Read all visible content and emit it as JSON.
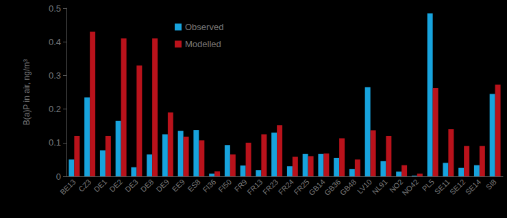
{
  "chart_data": {
    "type": "bar",
    "y_label": "B(a)P in air, ng/m³",
    "categories": [
      "BE13",
      "CZ3",
      "DE1",
      "DE2",
      "DE3",
      "DE8",
      "DE9",
      "EE9",
      "ES8",
      "FI36",
      "FI50",
      "FR9",
      "FR13",
      "FR23",
      "FR24",
      "FR25",
      "GB14",
      "GB36",
      "GB48",
      "LV10",
      "NL91",
      "NO2",
      "NO42",
      "PL5",
      "SE11",
      "SE12",
      "SE14",
      "SI8"
    ],
    "series": [
      {
        "name": "Observed",
        "color": "#17a3dd",
        "values": [
          0.05,
          0.235,
          0.077,
          0.165,
          0.027,
          0.065,
          0.125,
          0.135,
          0.138,
          0.008,
          0.093,
          0.032,
          0.018,
          0.13,
          0.03,
          0.067,
          0.067,
          0.055,
          0.022,
          0.265,
          0.045,
          0.014,
          0.002,
          0.485,
          0.04,
          0.025,
          0.033,
          0.245
        ]
      },
      {
        "name": "Modelled",
        "color": "#b9121b",
        "values": [
          0.12,
          0.43,
          0.12,
          0.41,
          0.33,
          0.41,
          0.19,
          0.118,
          0.107,
          0.015,
          0.065,
          0.1,
          0.125,
          0.152,
          0.058,
          0.06,
          0.068,
          0.113,
          0.05,
          0.137,
          0.12,
          0.033,
          0.008,
          0.262,
          0.14,
          0.09,
          0.09,
          0.273
        ]
      }
    ],
    "ylim": [
      0,
      0.5
    ],
    "yticks": [
      0,
      0.1,
      0.2,
      0.3,
      0.4,
      0.5
    ],
    "grid": false,
    "legend": "top"
  }
}
